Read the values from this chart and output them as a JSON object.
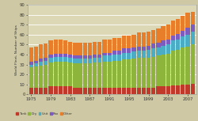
{
  "years": [
    1975,
    1976,
    1977,
    1978,
    1979,
    1980,
    1981,
    1982,
    1983,
    1984,
    1985,
    1986,
    1987,
    1988,
    1989,
    1990,
    1991,
    1992,
    1993,
    1994,
    1995,
    1996,
    1997,
    1998,
    1999,
    2000,
    2001,
    2002,
    2003,
    2004,
    2005,
    2006,
    2007,
    2008
  ],
  "tank": [
    7,
    7,
    7,
    7,
    8,
    8,
    8,
    8,
    8,
    7,
    7,
    7,
    7,
    7,
    7,
    7,
    7,
    7,
    7,
    7,
    7,
    7,
    7,
    7,
    7,
    7,
    8,
    8,
    8,
    9,
    9,
    10,
    10,
    11
  ],
  "dry": [
    20,
    21,
    22,
    23,
    24,
    25,
    25,
    25,
    24,
    24,
    24,
    24,
    24,
    25,
    25,
    26,
    26,
    27,
    27,
    28,
    28,
    29,
    30,
    30,
    30,
    31,
    31,
    32,
    33,
    35,
    36,
    37,
    38,
    39
  ],
  "unit": [
    3,
    3,
    4,
    4,
    5,
    5,
    5,
    5,
    5,
    5,
    5,
    5,
    5,
    5,
    5,
    6,
    6,
    6,
    6,
    7,
    7,
    7,
    7,
    7,
    8,
    8,
    8,
    9,
    9,
    10,
    10,
    11,
    12,
    13
  ],
  "pax": [
    3,
    3,
    3,
    3,
    3,
    3,
    3,
    3,
    3,
    3,
    3,
    3,
    3,
    3,
    3,
    3,
    3,
    4,
    4,
    4,
    4,
    4,
    4,
    4,
    4,
    5,
    5,
    5,
    5,
    5,
    6,
    6,
    7,
    7
  ],
  "other": [
    14,
    14,
    14,
    14,
    14,
    14,
    14,
    13,
    13,
    13,
    13,
    13,
    13,
    13,
    13,
    13,
    13,
    13,
    13,
    13,
    13,
    13,
    14,
    14,
    14,
    14,
    14,
    15,
    15,
    15,
    15,
    15,
    15,
    13
  ],
  "colors": {
    "tank": "#c0392b",
    "dry": "#8db53c",
    "unit": "#4bacc6",
    "pax": "#7c5cbf",
    "other": "#e87d2a"
  },
  "ylabel": "World Fleet, Number of Ships",
  "ylim": [
    0,
    90
  ],
  "yticks": [
    0,
    10,
    20,
    30,
    40,
    50,
    60,
    70,
    80,
    90
  ],
  "xtick_years": [
    1975,
    1979,
    1983,
    1987,
    1991,
    1995,
    1999,
    2003,
    2007
  ],
  "legend_labels": [
    "Tank",
    "Dry",
    "Unit",
    "Pax",
    "Other"
  ],
  "bg_color": "#cec9a4",
  "plot_bg": "#dcd7b5",
  "grid_color": "#ffffff"
}
